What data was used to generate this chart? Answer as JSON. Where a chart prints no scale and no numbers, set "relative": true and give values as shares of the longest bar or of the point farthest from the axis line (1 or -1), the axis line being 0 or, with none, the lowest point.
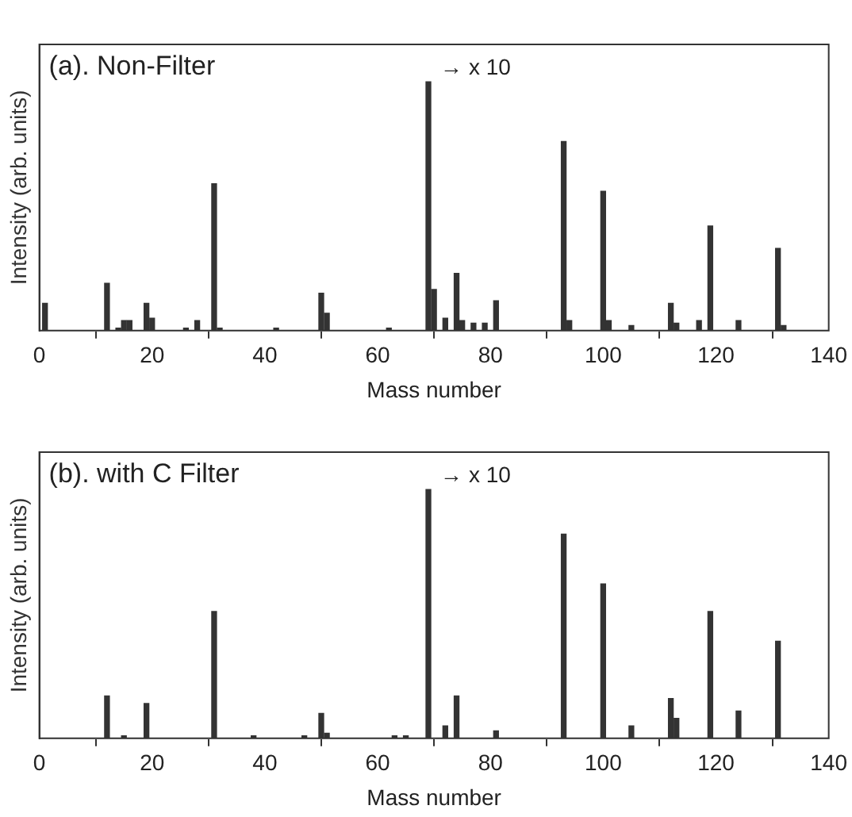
{
  "chart_data": [
    {
      "type": "bar",
      "title": "(a). Non-Filter",
      "xlabel": "Mass number",
      "ylabel": "Intensity (arb. units)",
      "relative": true,
      "color": "#333333",
      "grid": false,
      "legend": false,
      "x": [
        1,
        12,
        14,
        15,
        16,
        19,
        20,
        26,
        28,
        31,
        32,
        42,
        50,
        51,
        62,
        69,
        70,
        72,
        74,
        75,
        77,
        79,
        81,
        93,
        94,
        100,
        101,
        105,
        112,
        113,
        117,
        119,
        124,
        131,
        132
      ],
      "values": [
        0.11,
        0.19,
        0.01,
        0.04,
        0.04,
        0.11,
        0.05,
        0.01,
        0.04,
        0.59,
        0.01,
        0.01,
        0.15,
        0.07,
        0.01,
        1,
        0.165,
        0.05,
        0.23,
        0.04,
        0.03,
        0.03,
        0.12,
        0.76,
        0.04,
        0.56,
        0.04,
        0.02,
        0.11,
        0.03,
        0.04,
        0.42,
        0.04,
        0.33,
        0.02
      ],
      "xlim": [
        0,
        140
      ],
      "xticks": [
        0,
        20,
        40,
        60,
        80,
        100,
        120,
        140
      ],
      "annotations": [
        "→ x 10"
      ]
    },
    {
      "type": "bar",
      "title": "(b). with C Filter",
      "xlabel": "Mass number",
      "ylabel": "Intensity (arb. units)",
      "relative": true,
      "color": "#333333",
      "grid": false,
      "legend": false,
      "x": [
        12,
        15,
        19,
        31,
        38,
        47,
        50,
        51,
        63,
        65,
        69,
        72,
        74,
        81,
        93,
        100,
        105,
        112,
        113,
        119,
        124,
        131
      ],
      "values": [
        0.17,
        0.01,
        0.14,
        0.51,
        0.01,
        0.01,
        0.1,
        0.02,
        0.01,
        0.01,
        1,
        0.05,
        0.17,
        0.03,
        0.82,
        0.62,
        0.05,
        0.16,
        0.08,
        0.51,
        0.11,
        0.39
      ],
      "xlim": [
        0,
        140
      ],
      "xticks": [
        0,
        20,
        40,
        60,
        80,
        100,
        120,
        140
      ],
      "annotations": [
        "→ x 10"
      ]
    }
  ]
}
